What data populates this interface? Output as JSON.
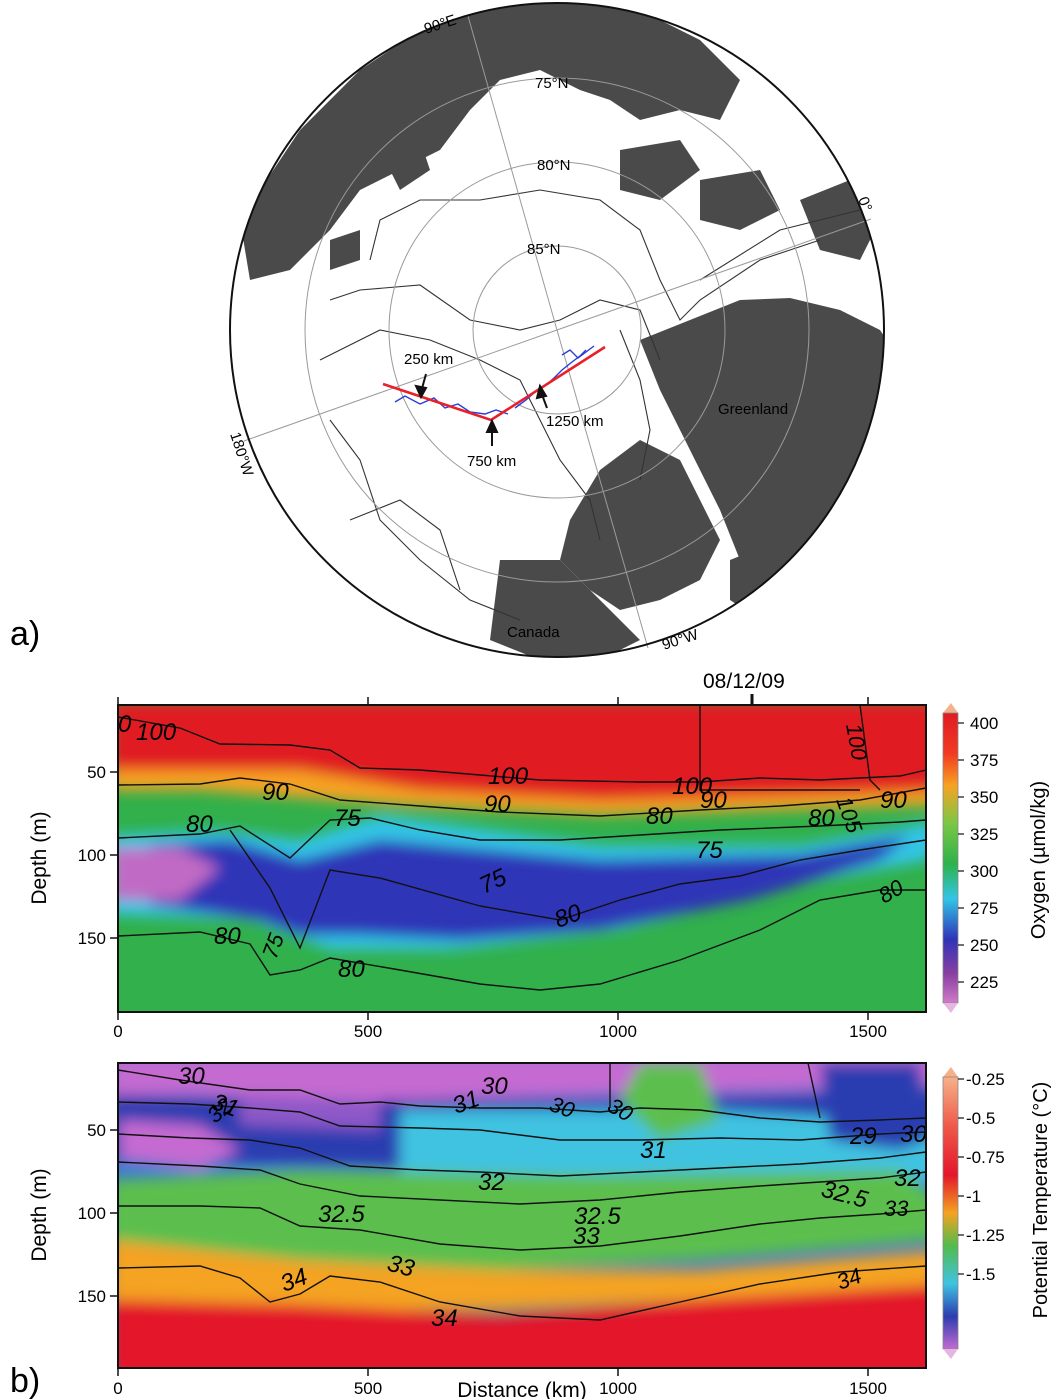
{
  "panel_a": {
    "letter": "a)",
    "latitude_labels": [
      "75°N",
      "80°N",
      "85°N"
    ],
    "longitude_labels": [
      "90°E",
      "0°",
      "90°W",
      "180°W"
    ],
    "region_labels": [
      "Greenland",
      "Canada"
    ],
    "distance_markers": [
      "250 km",
      "750 km",
      "1250 km"
    ],
    "colors": {
      "land": "#4a4a4a",
      "track": "#e8202a",
      "drift": "#2a3bd6"
    }
  },
  "panel_b": {
    "letter": "b)",
    "date_marker": "08/12/09",
    "x_axis_title": "Distance (km)",
    "oxygen_section": {
      "y_axis_title": "Depth (m)",
      "colorbar_title": "Oxygen (µmol/kg)"
    },
    "temperature_section": {
      "y_axis_title": "Depth (m)",
      "colorbar_title": "Potential Temperature (°C)"
    }
  },
  "chart_data": [
    {
      "type": "heatmap",
      "title": "",
      "xlabel": "",
      "ylabel": "Depth (m)",
      "xlim": [
        0,
        1620
      ],
      "ylim": [
        175,
        0
      ],
      "y_reversed": true,
      "x_ticks": [
        "0",
        "500",
        "1000",
        "1500"
      ],
      "y_ticks": [
        "50",
        "100",
        "150"
      ],
      "colorbar": {
        "label": "Oxygen (µmol/kg)",
        "ticks": [
          "400",
          "375",
          "350",
          "325",
          "300",
          "275",
          "250",
          "225"
        ]
      },
      "contours": [
        {
          "level": "100",
          "x": [
            0,
            150,
            250,
            350,
            500,
            700,
            1000,
            1300,
            1620
          ],
          "y": [
            8,
            18,
            28,
            40,
            44,
            50,
            56,
            54,
            50
          ]
        },
        {
          "level": "90",
          "x": [
            0,
            150,
            250,
            350,
            500,
            700,
            900,
            1200,
            1620
          ],
          "y": [
            52,
            54,
            52,
            60,
            64,
            68,
            72,
            70,
            62
          ]
        },
        {
          "level": "80",
          "x": [
            0,
            150,
            220,
            300,
            380,
            600,
            900,
            1150,
            1400,
            1620
          ],
          "y": [
            84,
            82,
            78,
            92,
            70,
            88,
            84,
            76,
            72,
            70
          ]
        },
        {
          "level": "75",
          "x": [
            230,
            280,
            330,
            380,
            500,
            700,
            900,
            1050,
            1200
          ],
          "y": [
            82,
            110,
            140,
            104,
            110,
            124,
            106,
            100,
            98
          ]
        },
        {
          "level": "80",
          "x": [
            0,
            150,
            220,
            260,
            320,
            450,
            700,
            900,
            1150,
            1400,
            1620
          ],
          "y": [
            130,
            128,
            134,
            148,
            150,
            152,
            152,
            138,
            110,
            104,
            110
          ]
        }
      ],
      "contour_labels": [
        "0",
        "100",
        "100",
        "100",
        "105",
        "100",
        "90",
        "90",
        "90",
        "90",
        "80",
        "80",
        "80",
        "80",
        "80",
        "80",
        "75",
        "75",
        "75",
        "75",
        "80"
      ],
      "color_zones": [
        {
          "name": "surface_high",
          "x": [
            0,
            1620
          ],
          "upper_boundary_depth": [
            50,
            58
          ],
          "level": 400
        },
        {
          "name": "subsurface_minimum",
          "x": [
            0,
            1400
          ],
          "upper_boundary_depth": [
            82,
            70
          ],
          "lower_boundary_depth": [
            128,
            110
          ],
          "level": 250
        },
        {
          "name": "deep",
          "x": [
            0,
            1620
          ],
          "upper_boundary_depth": [
            140,
            110
          ],
          "level": 300
        }
      ]
    },
    {
      "type": "heatmap",
      "title": "",
      "xlabel": "Distance (km)",
      "ylabel": "Depth (m)",
      "xlim": [
        0,
        1620
      ],
      "ylim": [
        175,
        0
      ],
      "y_reversed": true,
      "x_ticks": [
        "0",
        "500",
        "1000",
        "1500"
      ],
      "y_ticks": [
        "50",
        "100",
        "150"
      ],
      "colorbar": {
        "label": "Potential Temperature (°C)",
        "ticks": [
          "-0.25",
          "-0.5",
          "-0.75",
          "-1",
          "-1.25",
          "-1.5"
        ]
      },
      "contours": [
        {
          "level": "30",
          "x": [
            0,
            150,
            300,
            500,
            700,
            900,
            1200,
            1400,
            1620
          ],
          "y": [
            16,
            20,
            30,
            38,
            30,
            30,
            32,
            36,
            30
          ]
        },
        {
          "level": "31",
          "x": [
            0,
            150,
            300,
            500,
            800,
            1100,
            1300,
            1620
          ],
          "y": [
            30,
            32,
            36,
            44,
            44,
            46,
            46,
            42
          ]
        },
        {
          "level": "32",
          "x": [
            0,
            150,
            300,
            500,
            800,
            1100,
            1300,
            1620
          ],
          "y": [
            52,
            56,
            60,
            66,
            68,
            64,
            60,
            56
          ]
        },
        {
          "level": "32.5",
          "x": [
            0,
            150,
            300,
            500,
            800,
            1100,
            1300,
            1620
          ],
          "y": [
            70,
            74,
            82,
            88,
            86,
            80,
            76,
            70
          ]
        },
        {
          "level": "33",
          "x": [
            0,
            150,
            250,
            350,
            500,
            700,
            1000,
            1300,
            1620
          ],
          "y": [
            95,
            96,
            98,
            108,
            116,
            120,
            102,
            92,
            84
          ]
        },
        {
          "level": "34",
          "x": [
            0,
            150,
            220,
            270,
            320,
            450,
            700,
            1000,
            1300,
            1620
          ],
          "y": [
            126,
            128,
            134,
            148,
            140,
            150,
            156,
            140,
            128,
            118
          ]
        }
      ],
      "contour_labels": [
        "30",
        "31",
        "32",
        "31",
        "30",
        "30",
        "30",
        "31",
        "29",
        "30",
        "32",
        "32.5",
        "32.5",
        "32.5",
        "32",
        "33",
        "33",
        "33",
        "34",
        "34",
        "34"
      ],
      "color_zones": [
        {
          "name": "near_surface_cold",
          "x": [
            0,
            1620
          ],
          "upper_boundary_depth": [
            0,
            0
          ],
          "lower_boundary_depth": [
            30,
            28
          ],
          "level": -1.7
        },
        {
          "name": "cold_band",
          "x": [
            0,
            1620
          ],
          "upper_boundary_depth": [
            30,
            28
          ],
          "lower_boundary_depth": [
            95,
            90
          ],
          "level": -1.55
        },
        {
          "name": "transition",
          "x": [
            0,
            1620
          ],
          "upper_boundary_depth": [
            95,
            90
          ],
          "lower_boundary_depth": [
            135,
            125
          ],
          "level": -1.3
        },
        {
          "name": "warm_deep",
          "x": [
            0,
            1620
          ],
          "upper_boundary_depth": [
            135,
            125
          ],
          "level": -0.8
        }
      ]
    }
  ]
}
